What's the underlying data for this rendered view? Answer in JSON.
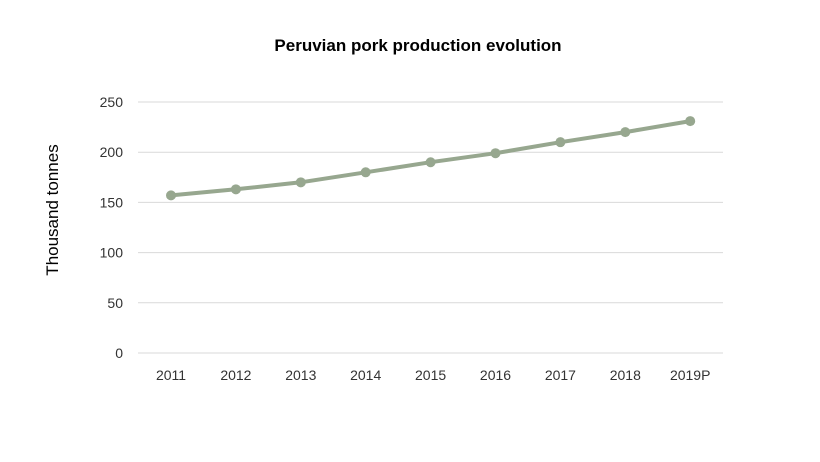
{
  "chart_data": {
    "type": "line",
    "title": "Peruvian pork production evolution",
    "xlabel": "",
    "ylabel": "Thousand tonnes",
    "categories": [
      "2011",
      "2012",
      "2013",
      "2014",
      "2015",
      "2016",
      "2017",
      "2018",
      "2019P"
    ],
    "series": [
      {
        "values": [
          157,
          163,
          170,
          180,
          190,
          199,
          210,
          220,
          231
        ]
      }
    ],
    "ylim": [
      0,
      250
    ],
    "yticks": [
      0,
      50,
      100,
      150,
      200,
      250
    ],
    "grid": true,
    "legend": "none",
    "colors": {
      "line": "#97a78f",
      "grid": "#d9d9d9"
    }
  }
}
